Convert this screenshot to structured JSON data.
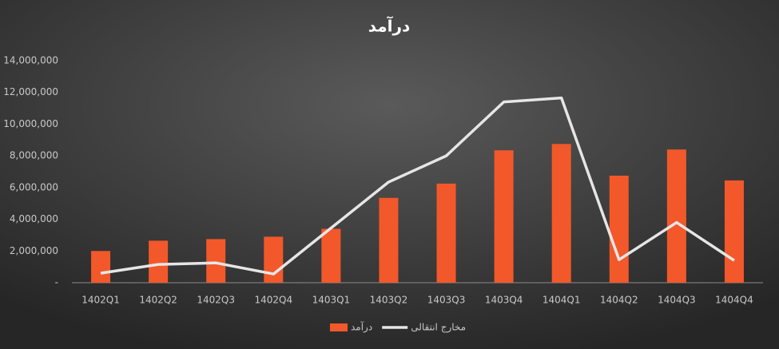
{
  "chart_data": {
    "type": "combo",
    "title": "درآمد",
    "categories": [
      "1402Q1",
      "1402Q2",
      "1402Q3",
      "1402Q4",
      "1403Q1",
      "1403Q2",
      "1403Q3",
      "1403Q4",
      "1404Q1",
      "1404Q2",
      "1404Q3",
      "1404Q4"
    ],
    "series": [
      {
        "name": "درآمد",
        "type": "bar",
        "color": "#f2582a",
        "values": [
          2000000,
          2650000,
          2750000,
          2900000,
          3400000,
          5350000,
          6250000,
          8350000,
          8750000,
          6750000,
          8400000,
          6450000
        ]
      },
      {
        "name": "مخارج انتقالی",
        "type": "line",
        "color": "#e6e6e6",
        "values": [
          600000,
          1150000,
          1250000,
          550000,
          3450000,
          6350000,
          8000000,
          11400000,
          11650000,
          1450000,
          3800000,
          1400000
        ]
      }
    ],
    "ylim": [
      0,
      14000000
    ],
    "yticks": [
      {
        "value": 0,
        "label": "-"
      },
      {
        "value": 2000000,
        "label": "2,000,000"
      },
      {
        "value": 4000000,
        "label": "4,000,000"
      },
      {
        "value": 6000000,
        "label": "6,000,000"
      },
      {
        "value": 8000000,
        "label": "8,000,000"
      },
      {
        "value": 10000000,
        "label": "10,000,000"
      },
      {
        "value": 12000000,
        "label": "12,000,000"
      },
      {
        "value": 14000000,
        "label": "14,000,000"
      }
    ],
    "legend": "bottom"
  }
}
